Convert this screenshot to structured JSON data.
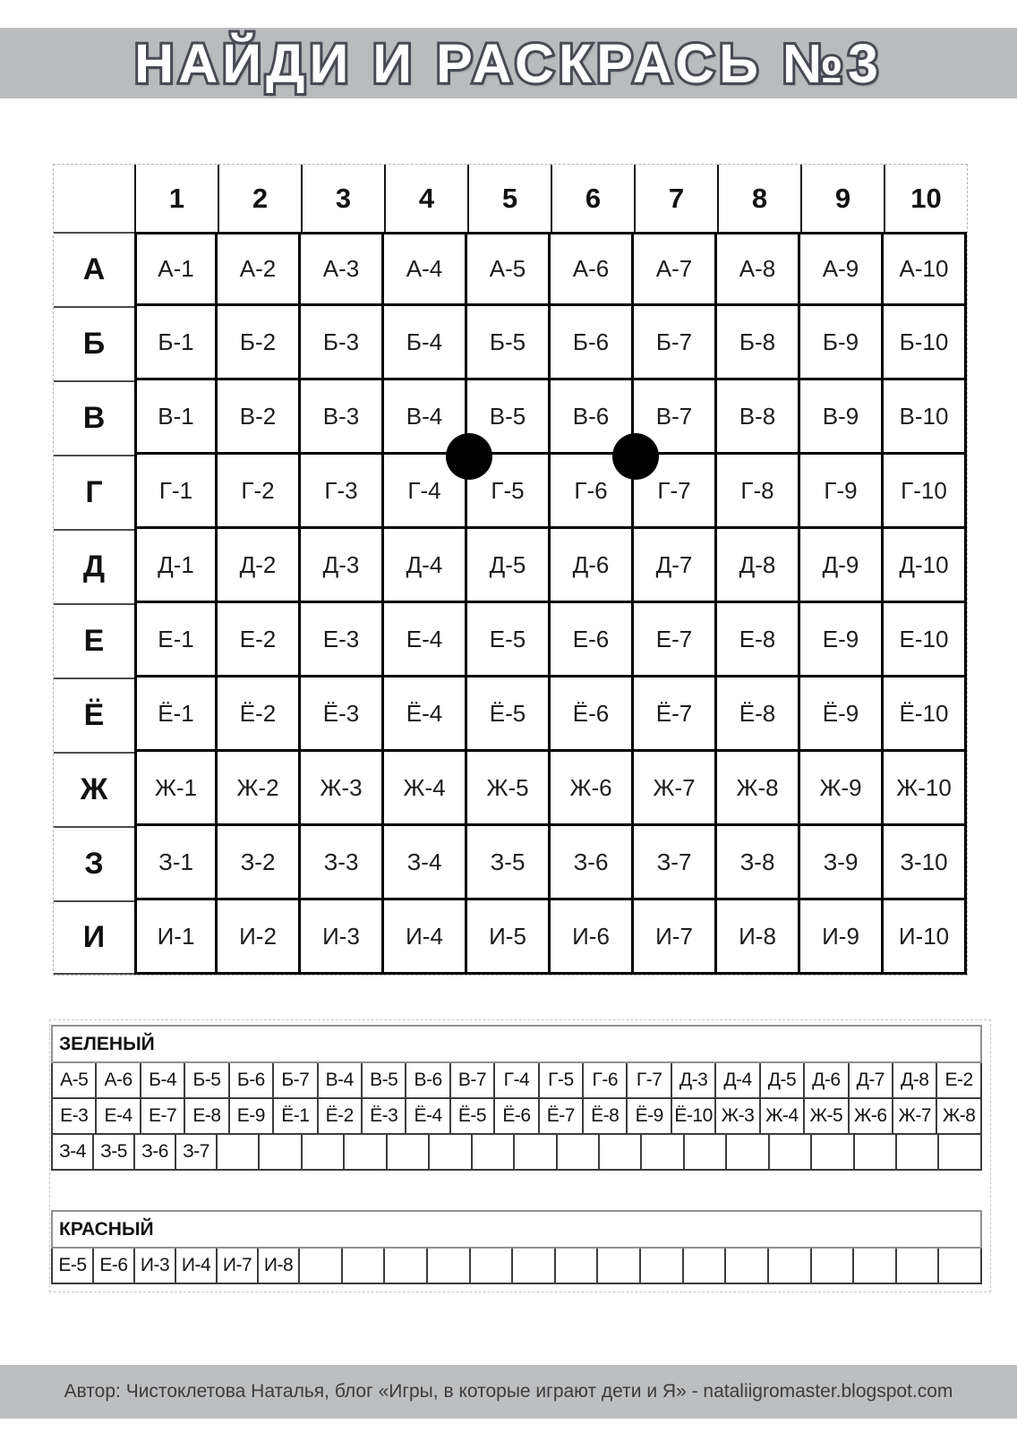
{
  "title": "НАЙДИ И РАСКРАСЬ №3",
  "grid": {
    "columns": [
      "1",
      "2",
      "3",
      "4",
      "5",
      "6",
      "7",
      "8",
      "9",
      "10"
    ],
    "rows": [
      {
        "label": "А",
        "cells": [
          "А-1",
          "А-2",
          "А-3",
          "А-4",
          "А-5",
          "А-6",
          "А-7",
          "А-8",
          "А-9",
          "А-10"
        ]
      },
      {
        "label": "Б",
        "cells": [
          "Б-1",
          "Б-2",
          "Б-3",
          "Б-4",
          "Б-5",
          "Б-6",
          "Б-7",
          "Б-8",
          "Б-9",
          "Б-10"
        ]
      },
      {
        "label": "В",
        "cells": [
          "В-1",
          "В-2",
          "В-3",
          "В-4",
          "В-5",
          "В-6",
          "В-7",
          "В-8",
          "В-9",
          "В-10"
        ]
      },
      {
        "label": "Г",
        "cells": [
          "Г-1",
          "Г-2",
          "Г-3",
          "Г-4",
          "Г-5",
          "Г-6",
          "Г-7",
          "Г-8",
          "Г-9",
          "Г-10"
        ]
      },
      {
        "label": "Д",
        "cells": [
          "Д-1",
          "Д-2",
          "Д-3",
          "Д-4",
          "Д-5",
          "Д-6",
          "Д-7",
          "Д-8",
          "Д-9",
          "Д-10"
        ]
      },
      {
        "label": "Е",
        "cells": [
          "Е-1",
          "Е-2",
          "Е-3",
          "Е-4",
          "Е-5",
          "Е-6",
          "Е-7",
          "Е-8",
          "Е-9",
          "Е-10"
        ]
      },
      {
        "label": "Ё",
        "cells": [
          "Ё-1",
          "Ё-2",
          "Ё-3",
          "Ё-4",
          "Ё-5",
          "Ё-6",
          "Ё-7",
          "Ё-8",
          "Ё-9",
          "Ё-10"
        ]
      },
      {
        "label": "Ж",
        "cells": [
          "Ж-1",
          "Ж-2",
          "Ж-3",
          "Ж-4",
          "Ж-5",
          "Ж-6",
          "Ж-7",
          "Ж-8",
          "Ж-9",
          "Ж-10"
        ]
      },
      {
        "label": "З",
        "cells": [
          "З-1",
          "З-2",
          "З-3",
          "З-4",
          "З-5",
          "З-6",
          "З-7",
          "З-8",
          "З-9",
          "З-10"
        ]
      },
      {
        "label": "И",
        "cells": [
          "И-1",
          "И-2",
          "И-3",
          "И-4",
          "И-5",
          "И-6",
          "И-7",
          "И-8",
          "И-9",
          "И-10"
        ]
      }
    ],
    "dots": [
      {
        "col": 4,
        "row": 3,
        "between_columns": "4/5",
        "between_rows": "В/Г"
      },
      {
        "col": 6,
        "row": 3,
        "between_columns": "6/7",
        "between_rows": "В/Г"
      }
    ],
    "dot_color": "#000000"
  },
  "legend": {
    "green": {
      "label": "ЗЕЛЕНЫЙ",
      "rows": [
        {
          "cells": [
            "А-5",
            "А-6",
            "Б-4",
            "Б-5",
            "Б-6",
            "Б-7",
            "В-4",
            "В-5",
            "В-6",
            "В-7",
            "Г-4",
            "Г-5",
            "Г-6",
            "Г-7",
            "Д-3",
            "Д-4",
            "Д-5",
            "Д-6",
            "Д-7",
            "Д-8",
            "Е-2"
          ],
          "empty": 0
        },
        {
          "cells": [
            "Е-3",
            "Е-4",
            "Е-7",
            "Е-8",
            "Е-9",
            "Ё-1",
            "Ё-2",
            "Ё-3",
            "Ё-4",
            "Ё-5",
            "Ё-6",
            "Ё-7",
            "Ё-8",
            "Ё-9",
            "Ё-10",
            "Ж-3",
            "Ж-4",
            "Ж-5",
            "Ж-6",
            "Ж-7",
            "Ж-8"
          ],
          "empty": 0
        },
        {
          "cells": [
            "З-4",
            "З-5",
            "З-6",
            "З-7"
          ],
          "empty": 18
        }
      ]
    },
    "red": {
      "label": "КРАСНЫЙ",
      "rows": [
        {
          "cells": [
            "Е-5",
            "Е-6",
            "И-3",
            "И-4",
            "И-7",
            "И-8"
          ],
          "empty": 16
        }
      ]
    }
  },
  "footer": {
    "text": "Автор: Чистоклетова Наталья, блог «Игры, в которые играют дети и Я» - nataliigromaster.blogspot.com"
  },
  "colors": {
    "banner_gray": "#babbbd",
    "title_fill": "#ffffff",
    "title_outline": "#484b53",
    "grid_border": "#000000",
    "footer_gray": "#bdbec0"
  }
}
